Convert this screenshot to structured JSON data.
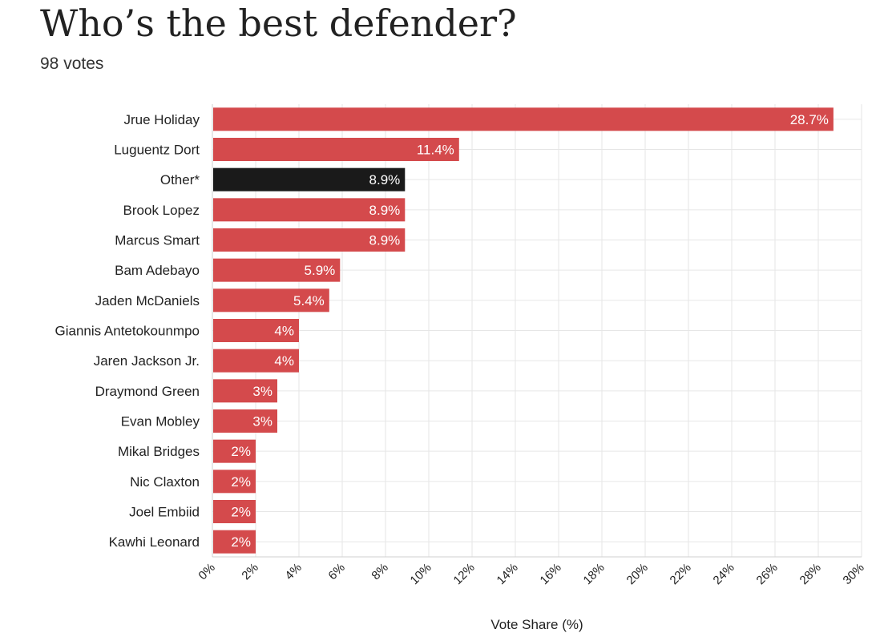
{
  "title": "Who’s the best defender?",
  "subtitle": "98 votes",
  "chart_data": {
    "type": "bar",
    "orientation": "horizontal",
    "title": "Who’s the best defender?",
    "subtitle": "98 votes",
    "xlabel": "Vote Share (%)",
    "ylabel": "",
    "xlim": [
      0,
      30
    ],
    "grid": true,
    "categories": [
      "Jrue Holiday",
      "Luguentz Dort",
      "Other*",
      "Brook Lopez",
      "Marcus Smart",
      "Bam Adebayo",
      "Jaden McDaniels",
      "Giannis Antetokounmpo",
      "Jaren Jackson Jr.",
      "Draymond Green",
      "Evan Mobley",
      "Mikal Bridges",
      "Nic Claxton",
      "Joel Embiid",
      "Kawhi Leonard"
    ],
    "values": [
      28.7,
      11.4,
      8.9,
      8.9,
      8.9,
      5.9,
      5.4,
      4,
      4,
      3,
      3,
      2,
      2,
      2,
      2
    ],
    "value_labels": [
      "28.7%",
      "11.4%",
      "8.9%",
      "8.9%",
      "8.9%",
      "5.9%",
      "5.4%",
      "4%",
      "4%",
      "3%",
      "3%",
      "2%",
      "2%",
      "2%",
      "2%"
    ],
    "bar_colors": [
      "#d44a4c",
      "#d44a4c",
      "#1a1a1a",
      "#d44a4c",
      "#d44a4c",
      "#d44a4c",
      "#d44a4c",
      "#d44a4c",
      "#d44a4c",
      "#d44a4c",
      "#d44a4c",
      "#d44a4c",
      "#d44a4c",
      "#d44a4c",
      "#d44a4c"
    ],
    "x_ticks": [
      0,
      2,
      4,
      6,
      8,
      10,
      12,
      14,
      16,
      18,
      20,
      22,
      24,
      26,
      28,
      30
    ],
    "x_tick_labels": [
      "0%",
      "2%",
      "4%",
      "6%",
      "8%",
      "10%",
      "12%",
      "14%",
      "16%",
      "18%",
      "20%",
      "22%",
      "24%",
      "26%",
      "28%",
      "30%"
    ]
  },
  "colors": {
    "bar": "#d44a4c",
    "highlight_bar": "#1a1a1a",
    "grid": "#e6e6e6",
    "text": "#222222"
  }
}
